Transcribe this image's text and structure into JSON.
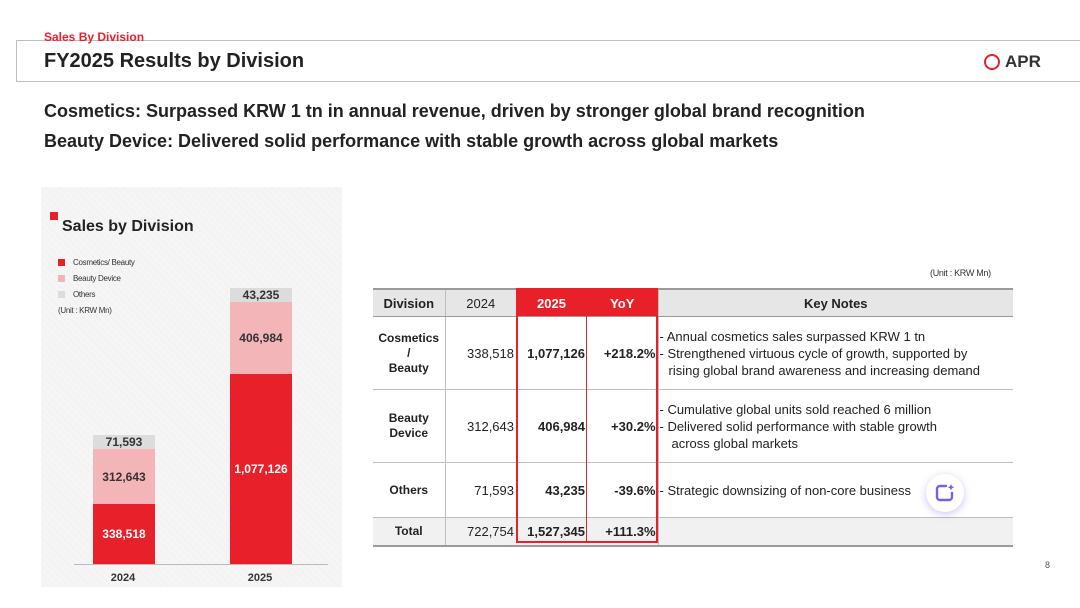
{
  "header": {
    "section_tag": "Sales By Division",
    "title": "FY2025 Results by Division",
    "brand": "APR",
    "brand_color": "#e8202a"
  },
  "headlines": [
    "Cosmetics: Surpassed KRW 1 tn in annual revenue, driven by stronger global brand recognition",
    "Beauty Device: Delivered solid performance with stable growth across global markets"
  ],
  "chart_panel": {
    "title": "Sales by Division",
    "unit": "(Unit : KRW Mn)"
  },
  "chart_data": {
    "type": "bar",
    "stacked": true,
    "title": "Sales by Division",
    "categories": [
      "2024",
      "2025"
    ],
    "series": [
      {
        "name": "Cosmetics/ Beauty",
        "values": [
          338518,
          1077126
        ],
        "labels": [
          "338,518",
          "1,077,126"
        ],
        "color": "#e8202a",
        "text_color": "#ffffff"
      },
      {
        "name": "Beauty Device",
        "values": [
          312643,
          406984
        ],
        "labels": [
          "312,643",
          "406,984"
        ],
        "color": "#f4b5b8",
        "text_color": "#333333"
      },
      {
        "name": "Others",
        "values": [
          71593,
          43235
        ],
        "labels": [
          "71,593",
          "43,235"
        ],
        "color": "#dcdcdc",
        "text_color": "#333333"
      }
    ],
    "legend_position": "top-left",
    "unit": "(Unit : KRW Mn)"
  },
  "table": {
    "unit": "(Unit : KRW Mn)",
    "headers": [
      "Division",
      "2024",
      "2025",
      "YoY",
      "Key Notes"
    ],
    "rows": [
      {
        "division": [
          "Cosmetics",
          "/",
          "Beauty"
        ],
        "y2024": "338,518",
        "y2025": "1,077,126",
        "yoy": "+218.2%",
        "notes": [
          "- Annual cosmetics sales surpassed KRW 1 tn",
          "- Strengthened virtuous cycle of growth, supported by",
          "rising global brand awareness and increasing demand"
        ]
      },
      {
        "division": [
          "Beauty",
          "Device"
        ],
        "y2024": "312,643",
        "y2025": "406,984",
        "yoy": "+30.2%",
        "notes": [
          "- Cumulative global units sold reached 6 million",
          "- Delivered solid performance with stable growth",
          "across global markets"
        ]
      },
      {
        "division": [
          "Others"
        ],
        "y2024": "71,593",
        "y2025": "43,235",
        "yoy": "-39.6%",
        "notes": [
          "- Strategic downsizing of non-core business"
        ]
      }
    ],
    "total": {
      "label": "Total",
      "y2024": "722,754",
      "y2025": "1,527,345",
      "yoy": "+111.3%"
    }
  },
  "page_number": "8",
  "assistant_button": {
    "icon": "ai-assistant-icon",
    "color": "#7b5cf0"
  }
}
